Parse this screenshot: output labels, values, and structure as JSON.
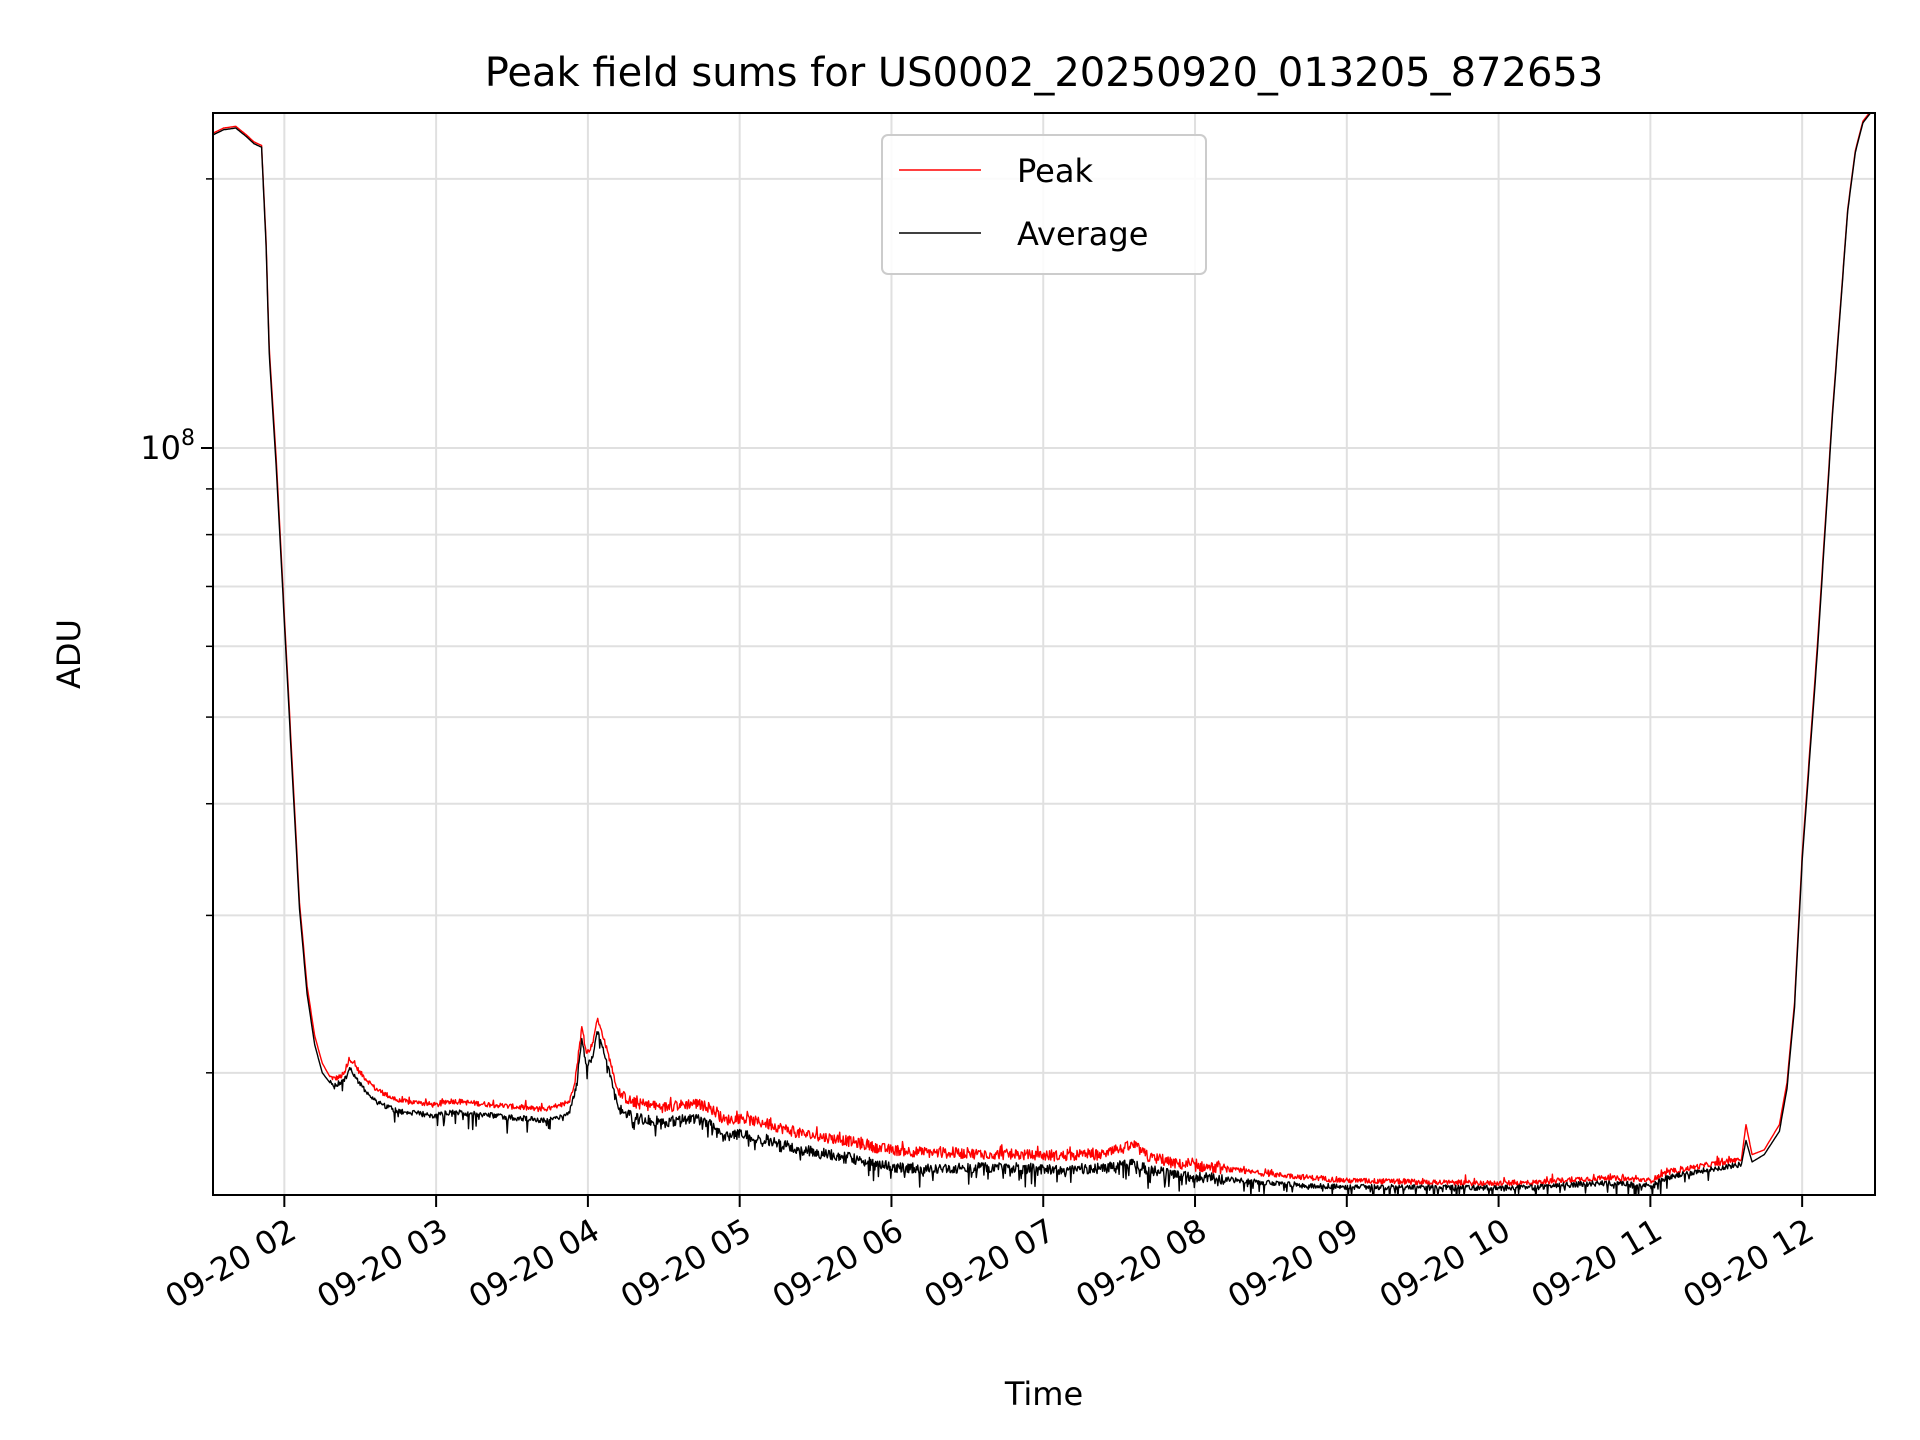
{
  "chart_data": {
    "type": "line",
    "title": "Peak field sums for US0002_20250920_013205_872653",
    "xlabel": "Time",
    "ylabel": "ADU",
    "yscale": "log",
    "ylim": [
      14600000,
      237000000
    ],
    "xlim_hours": [
      1.53,
      12.48
    ],
    "grid": true,
    "legend_position": "upper center",
    "x_ticks": [
      {
        "hour": 2,
        "label": "09-20 02"
      },
      {
        "hour": 3,
        "label": "09-20 03"
      },
      {
        "hour": 4,
        "label": "09-20 04"
      },
      {
        "hour": 5,
        "label": "09-20 05"
      },
      {
        "hour": 6,
        "label": "09-20 06"
      },
      {
        "hour": 7,
        "label": "09-20 07"
      },
      {
        "hour": 8,
        "label": "09-20 08"
      },
      {
        "hour": 9,
        "label": "09-20 09"
      },
      {
        "hour": 10,
        "label": "09-20 10"
      },
      {
        "hour": 11,
        "label": "09-20 11"
      },
      {
        "hour": 12,
        "label": "09-20 12"
      }
    ],
    "y_major_ticks": [
      {
        "value": 100000000,
        "label_base": "10",
        "label_exp": "8"
      }
    ],
    "y_minor_ticks": [
      20000000,
      30000000,
      40000000,
      50000000,
      60000000,
      70000000,
      80000000,
      90000000,
      200000000
    ],
    "series": [
      {
        "name": "Peak",
        "color": "#ff0000",
        "hours": [
          1.53,
          1.6,
          1.68,
          1.75,
          1.8,
          1.85,
          1.88,
          1.9,
          1.95,
          2.0,
          2.05,
          2.1,
          2.15,
          2.2,
          2.25,
          2.3,
          2.33,
          2.37,
          2.4,
          2.43,
          2.5,
          2.6,
          2.75,
          2.9,
          3.0,
          3.1,
          3.25,
          3.4,
          3.55,
          3.7,
          3.8,
          3.88,
          3.92,
          3.96,
          3.99,
          4.03,
          4.06,
          4.1,
          4.15,
          4.2,
          4.3,
          4.5,
          4.7,
          4.8,
          4.9,
          5.0,
          5.2,
          5.4,
          5.5,
          5.7,
          5.9,
          6.0,
          6.2,
          6.5,
          6.8,
          7.1,
          7.4,
          7.6,
          7.7,
          7.9,
          8.2,
          8.5,
          8.8,
          9.0,
          9.3,
          9.6,
          9.9,
          10.2,
          10.5,
          10.7,
          10.9,
          11.0,
          11.1,
          11.3,
          11.5,
          11.6,
          11.63,
          11.67,
          11.75,
          11.85,
          11.9,
          11.95,
          12.0,
          12.1,
          12.2,
          12.3,
          12.35,
          12.4,
          12.45,
          12.48
        ],
        "values": [
          225000000,
          228000000,
          229000000,
          224000000,
          220000000,
          218000000,
          170000000,
          130000000,
          95000000,
          65000000,
          45000000,
          31000000,
          25000000,
          22000000,
          20500000,
          19800000,
          19700000,
          19800000,
          20000000,
          20800000,
          20000000,
          19200000,
          18600000,
          18500000,
          18400000,
          18600000,
          18500000,
          18400000,
          18300000,
          18200000,
          18300000,
          18600000,
          19800000,
          22500000,
          21000000,
          21500000,
          23000000,
          22000000,
          20500000,
          19000000,
          18500000,
          18300000,
          18500000,
          18300000,
          17700000,
          17800000,
          17500000,
          17100000,
          17000000,
          16800000,
          16500000,
          16400000,
          16300000,
          16250000,
          16200000,
          16150000,
          16200000,
          16600000,
          16050000,
          15800000,
          15600000,
          15400000,
          15250000,
          15150000,
          15120000,
          15080000,
          15050000,
          15060000,
          15200000,
          15260000,
          15200000,
          15150000,
          15450000,
          15700000,
          15900000,
          16000000,
          17500000,
          16200000,
          16400000,
          17500000,
          19500000,
          24000000,
          35000000,
          60000000,
          110000000,
          185000000,
          215000000,
          232000000,
          238000000,
          240000000
        ]
      },
      {
        "name": "Average",
        "color": "#000000",
        "hours": [
          1.53,
          1.6,
          1.68,
          1.75,
          1.8,
          1.85,
          1.88,
          1.9,
          1.95,
          2.0,
          2.05,
          2.1,
          2.15,
          2.2,
          2.25,
          2.3,
          2.33,
          2.37,
          2.4,
          2.43,
          2.5,
          2.6,
          2.75,
          2.9,
          3.0,
          3.1,
          3.25,
          3.4,
          3.55,
          3.7,
          3.8,
          3.88,
          3.92,
          3.96,
          3.99,
          4.03,
          4.06,
          4.1,
          4.15,
          4.2,
          4.3,
          4.5,
          4.7,
          4.8,
          4.9,
          5.0,
          5.2,
          5.4,
          5.5,
          5.7,
          5.9,
          6.0,
          6.2,
          6.5,
          6.8,
          7.1,
          7.4,
          7.6,
          7.7,
          7.9,
          8.2,
          8.5,
          8.8,
          9.0,
          9.3,
          9.6,
          9.9,
          10.2,
          10.5,
          10.7,
          10.9,
          11.0,
          11.1,
          11.3,
          11.5,
          11.6,
          11.63,
          11.67,
          11.75,
          11.85,
          11.9,
          11.95,
          12.0,
          12.1,
          12.2,
          12.3,
          12.35,
          12.4,
          12.45,
          12.48
        ],
        "values": [
          224000000,
          227000000,
          228000000,
          223000000,
          219000000,
          217000000,
          168000000,
          128000000,
          93000000,
          64000000,
          44000000,
          30500000,
          24500000,
          21500000,
          20000000,
          19500000,
          19400000,
          19500000,
          19700000,
          20300000,
          19400000,
          18600000,
          18100000,
          18000000,
          17900000,
          18100000,
          18000000,
          17900000,
          17800000,
          17700000,
          17800000,
          18100000,
          19200000,
          21800000,
          20300000,
          20800000,
          22300000,
          21300000,
          19800000,
          18300000,
          17800000,
          17600000,
          17800000,
          17600000,
          17000000,
          17100000,
          16800000,
          16400000,
          16300000,
          16100000,
          15800000,
          15700000,
          15650000,
          15650000,
          15650000,
          15600000,
          15650000,
          15800000,
          15550000,
          15350000,
          15200000,
          15050000,
          14950000,
          14900000,
          14900000,
          14880000,
          14870000,
          14880000,
          15000000,
          15050000,
          15000000,
          14960000,
          15250000,
          15500000,
          15700000,
          15800000,
          16800000,
          15900000,
          16200000,
          17200000,
          19200000,
          23700000,
          34500000,
          59000000,
          109000000,
          184000000,
          214000000,
          231000000,
          237000000,
          239000000
        ]
      }
    ]
  }
}
